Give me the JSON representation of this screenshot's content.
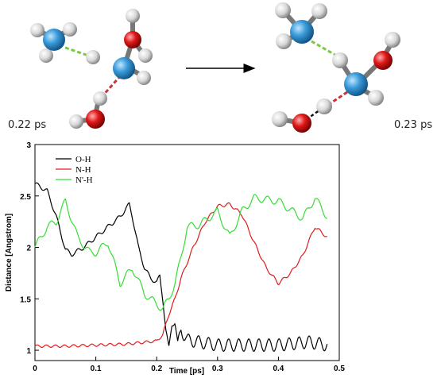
{
  "figure": {
    "time_left": "0.22 ps",
    "time_right": "0.23 ps"
  },
  "atom_colors": {
    "nitrogen": "#3a9ad9",
    "oxygen": "#d81818",
    "hydrogen": "#d8d8d8",
    "hbond_green": "#7ac943",
    "hbond_red": "#cc3333"
  },
  "chart_data": {
    "type": "line",
    "xlabel": "Time [ps]",
    "ylabel": "Distance [Angstrom]",
    "xlim": [
      0,
      0.5
    ],
    "ylim": [
      0.9,
      3.0
    ],
    "x_ticks": [
      "0",
      "0.1",
      "0.2",
      "0.3",
      "0.4",
      "0.5"
    ],
    "y_ticks": [
      "1",
      "1.5",
      "2",
      "2.5",
      "3"
    ],
    "legend_position": "top-left",
    "grid": false,
    "series": [
      {
        "name": "O-H",
        "color": "#000000",
        "points": [
          [
            0.0,
            2.62
          ],
          [
            0.02,
            2.55
          ],
          [
            0.035,
            2.3
          ],
          [
            0.05,
            1.98
          ],
          [
            0.06,
            1.93
          ],
          [
            0.08,
            2.0
          ],
          [
            0.1,
            2.1
          ],
          [
            0.12,
            2.2
          ],
          [
            0.14,
            2.3
          ],
          [
            0.155,
            2.42
          ],
          [
            0.16,
            2.3
          ],
          [
            0.17,
            2.0
          ],
          [
            0.18,
            1.8
          ],
          [
            0.19,
            1.7
          ],
          [
            0.2,
            1.66
          ],
          [
            0.205,
            1.72
          ],
          [
            0.21,
            1.5
          ],
          [
            0.215,
            1.2
          ],
          [
            0.22,
            1.02
          ],
          [
            0.225,
            1.25
          ],
          [
            0.23,
            1.27
          ],
          [
            0.235,
            1.05
          ],
          [
            0.24,
            1.2
          ],
          [
            0.25,
            1.1
          ],
          [
            0.3,
            1.05
          ],
          [
            0.35,
            1.05
          ],
          [
            0.4,
            1.05
          ],
          [
            0.45,
            1.08
          ],
          [
            0.48,
            1.05
          ]
        ]
      },
      {
        "name": "N-H",
        "color": "#e31a1c",
        "points": [
          [
            0.0,
            1.04
          ],
          [
            0.05,
            1.04
          ],
          [
            0.1,
            1.05
          ],
          [
            0.15,
            1.06
          ],
          [
            0.2,
            1.09
          ],
          [
            0.21,
            1.15
          ],
          [
            0.22,
            1.35
          ],
          [
            0.23,
            1.5
          ],
          [
            0.24,
            1.7
          ],
          [
            0.25,
            1.85
          ],
          [
            0.26,
            2.0
          ],
          [
            0.28,
            2.25
          ],
          [
            0.3,
            2.4
          ],
          [
            0.32,
            2.42
          ],
          [
            0.34,
            2.32
          ],
          [
            0.36,
            2.05
          ],
          [
            0.38,
            1.8
          ],
          [
            0.4,
            1.65
          ],
          [
            0.42,
            1.75
          ],
          [
            0.44,
            1.92
          ],
          [
            0.46,
            2.2
          ],
          [
            0.48,
            2.1
          ]
        ]
      },
      {
        "name": "N'-H",
        "color": "#33dd33",
        "points": [
          [
            0.0,
            2.0
          ],
          [
            0.02,
            2.2
          ],
          [
            0.035,
            2.25
          ],
          [
            0.05,
            2.45
          ],
          [
            0.07,
            2.1
          ],
          [
            0.09,
            1.95
          ],
          [
            0.1,
            1.95
          ],
          [
            0.12,
            2.05
          ],
          [
            0.14,
            1.65
          ],
          [
            0.16,
            1.8
          ],
          [
            0.18,
            1.55
          ],
          [
            0.2,
            1.45
          ],
          [
            0.21,
            1.4
          ],
          [
            0.22,
            1.5
          ],
          [
            0.23,
            1.65
          ],
          [
            0.24,
            1.9
          ],
          [
            0.25,
            2.2
          ],
          [
            0.27,
            2.22
          ],
          [
            0.3,
            2.35
          ],
          [
            0.32,
            2.1
          ],
          [
            0.34,
            2.35
          ],
          [
            0.36,
            2.48
          ],
          [
            0.4,
            2.45
          ],
          [
            0.44,
            2.28
          ],
          [
            0.46,
            2.48
          ],
          [
            0.48,
            2.3
          ]
        ]
      }
    ]
  }
}
